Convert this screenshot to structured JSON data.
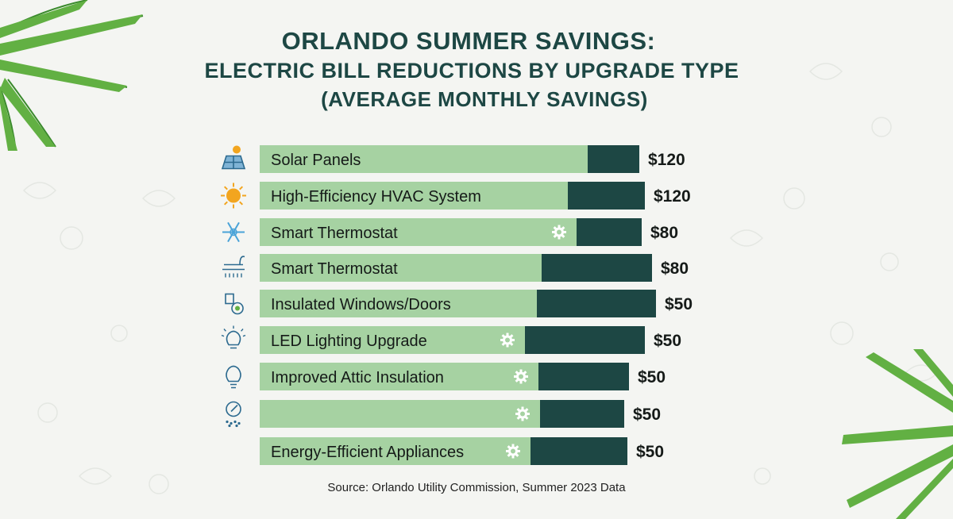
{
  "header": {
    "title_line1": "ORLANDO SUMMER SAVINGS:",
    "title_line2": "ELECTRIC BILL REDUCTIONS BY UPGRADE TYPE",
    "title_line3": "(AVERAGE MONTHLY SAVINGS)"
  },
  "source": "Source: Orlando Utility Commission, Summer 2023 Data",
  "colors": {
    "light_bar": "#a6d2a2",
    "dark_bar": "#1d4744",
    "title": "#1d4744",
    "gear": "#ffffff",
    "icon": "#2c6a8f"
  },
  "chart_data": {
    "type": "bar",
    "orientation": "horizontal",
    "title": "ORLANDO SUMMER SAVINGS: ELECTRIC BILL REDUCTIONS BY UPGRADE TYPE (AVERAGE MONTHLY SAVINGS)",
    "categories": [
      "Solar Panels",
      "High-Efficiency HVAC System",
      "Smart Thermostat",
      "Smart Thermostat",
      "Insulated Windows/Doors",
      "LED Lighting Upgrade",
      "Improved Attic Insulation",
      "",
      "Energy-Efficient Appliances"
    ],
    "values": [
      120,
      120,
      80,
      80,
      50,
      50,
      50,
      50,
      50
    ],
    "value_labels": [
      "$120",
      "$120",
      "$80",
      "$80",
      "$50",
      "$50",
      "$50",
      "$50",
      "$50"
    ],
    "icons": [
      "solar-panel-icon",
      "sun-icon",
      "snowflake-icon",
      "shower-icon",
      "window-tools-icon",
      "lightbulb-glow-icon",
      "lightbulb-icon",
      "brush-icon",
      "none"
    ],
    "gear_markers": [
      false,
      false,
      true,
      false,
      false,
      true,
      true,
      true,
      true
    ]
  }
}
